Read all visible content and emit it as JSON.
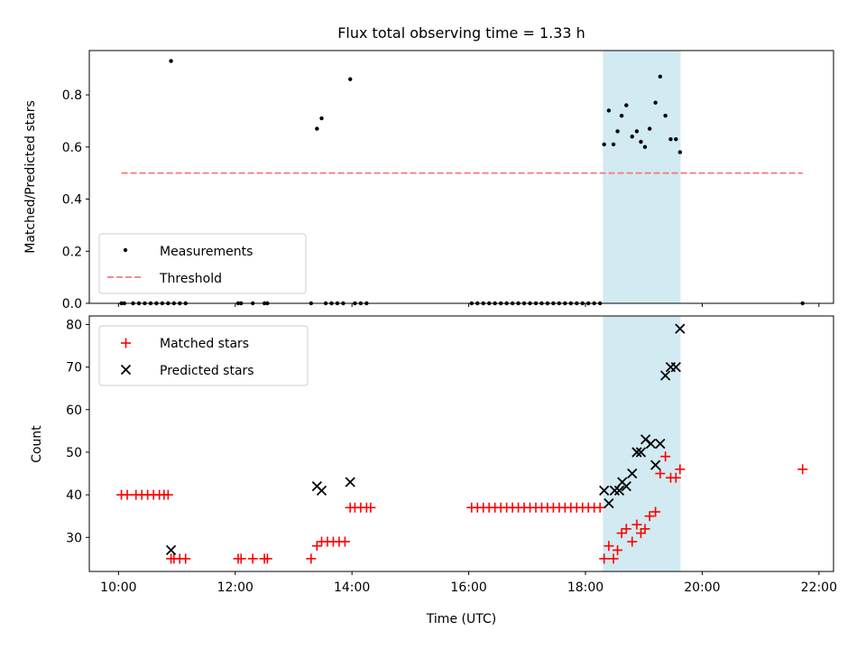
{
  "figure": {
    "title": "Flux total observing time = 1.33 h",
    "colors": {
      "highlight": "#add8e6",
      "measurement": "#000000",
      "threshold": "#f08080",
      "matched": "#ff0000",
      "predicted": "#000000"
    }
  },
  "chart_data": [
    {
      "type": "scatter",
      "title": "Flux total observing time = 1.33 h",
      "xlabel": "",
      "ylabel": "Matched/Predicted stars",
      "xlim": [
        9.5,
        22.25
      ],
      "ylim": [
        0,
        0.97
      ],
      "yticks": [
        0.0,
        0.2,
        0.4,
        0.6,
        0.8
      ],
      "ytick_labels": [
        "0.0",
        "0.2",
        "0.4",
        "0.6",
        "0.8"
      ],
      "grid": false,
      "legend": "lower-left",
      "highlight_span": [
        18.3,
        19.63
      ],
      "series": [
        {
          "name": "Measurements",
          "marker": "dot",
          "points": [
            [
              10.05,
              0
            ],
            [
              10.1,
              0
            ],
            [
              10.25,
              0
            ],
            [
              10.35,
              0
            ],
            [
              10.45,
              0
            ],
            [
              10.55,
              0
            ],
            [
              10.65,
              0
            ],
            [
              10.75,
              0
            ],
            [
              10.85,
              0
            ],
            [
              10.9,
              0.93
            ],
            [
              10.95,
              0
            ],
            [
              11.05,
              0
            ],
            [
              11.15,
              0
            ],
            [
              12.05,
              0
            ],
            [
              12.1,
              0
            ],
            [
              12.3,
              0
            ],
            [
              12.5,
              0
            ],
            [
              12.55,
              0
            ],
            [
              13.3,
              0
            ],
            [
              13.4,
              0.67
            ],
            [
              13.48,
              0.71
            ],
            [
              13.55,
              0
            ],
            [
              13.65,
              0
            ],
            [
              13.75,
              0
            ],
            [
              13.85,
              0
            ],
            [
              13.97,
              0.86
            ],
            [
              14.05,
              0
            ],
            [
              14.15,
              0
            ],
            [
              14.25,
              0
            ],
            [
              16.05,
              0
            ],
            [
              16.15,
              0
            ],
            [
              16.25,
              0
            ],
            [
              16.35,
              0
            ],
            [
              16.45,
              0
            ],
            [
              16.55,
              0
            ],
            [
              16.65,
              0
            ],
            [
              16.75,
              0
            ],
            [
              16.85,
              0
            ],
            [
              16.95,
              0
            ],
            [
              17.05,
              0
            ],
            [
              17.15,
              0
            ],
            [
              17.25,
              0
            ],
            [
              17.35,
              0
            ],
            [
              17.45,
              0
            ],
            [
              17.55,
              0
            ],
            [
              17.65,
              0
            ],
            [
              17.75,
              0
            ],
            [
              17.85,
              0
            ],
            [
              17.95,
              0
            ],
            [
              18.05,
              0
            ],
            [
              18.15,
              0
            ],
            [
              18.25,
              0
            ],
            [
              18.32,
              0.61
            ],
            [
              18.4,
              0.74
            ],
            [
              18.48,
              0.61
            ],
            [
              18.55,
              0.66
            ],
            [
              18.62,
              0.72
            ],
            [
              18.7,
              0.76
            ],
            [
              18.8,
              0.64
            ],
            [
              18.88,
              0.66
            ],
            [
              18.95,
              0.62
            ],
            [
              19.02,
              0.6
            ],
            [
              19.1,
              0.67
            ],
            [
              19.2,
              0.77
            ],
            [
              19.28,
              0.87
            ],
            [
              19.37,
              0.72
            ],
            [
              19.46,
              0.63
            ],
            [
              19.55,
              0.63
            ],
            [
              19.62,
              0.58
            ],
            [
              21.72,
              0
            ]
          ]
        },
        {
          "name": "Threshold",
          "marker": "dashed-line",
          "line": [
            [
              10.05,
              0.5
            ],
            [
              21.72,
              0.5
            ]
          ]
        }
      ]
    },
    {
      "type": "scatter",
      "title": "",
      "xlabel": "Time (UTC)",
      "ylabel": "Count",
      "xlim": [
        9.5,
        22.25
      ],
      "ylim": [
        22,
        82
      ],
      "xticks": [
        10,
        12,
        14,
        16,
        18,
        20,
        22
      ],
      "xtick_labels": [
        "10:00",
        "12:00",
        "14:00",
        "16:00",
        "18:00",
        "20:00",
        "22:00"
      ],
      "yticks": [
        30,
        40,
        50,
        60,
        70,
        80
      ],
      "ytick_labels": [
        "30",
        "40",
        "50",
        "60",
        "70",
        "80"
      ],
      "grid": false,
      "legend": "top-left",
      "highlight_span": [
        18.3,
        19.63
      ],
      "series": [
        {
          "name": "Matched stars",
          "marker": "plus",
          "points": [
            [
              10.05,
              40
            ],
            [
              10.15,
              40
            ],
            [
              10.3,
              40
            ],
            [
              10.4,
              40
            ],
            [
              10.5,
              40
            ],
            [
              10.6,
              40
            ],
            [
              10.7,
              40
            ],
            [
              10.78,
              40
            ],
            [
              10.85,
              40
            ],
            [
              10.9,
              25
            ],
            [
              10.95,
              25
            ],
            [
              11.05,
              25
            ],
            [
              11.15,
              25
            ],
            [
              12.05,
              25
            ],
            [
              12.1,
              25
            ],
            [
              12.3,
              25
            ],
            [
              12.5,
              25
            ],
            [
              12.55,
              25
            ],
            [
              13.3,
              25
            ],
            [
              13.4,
              28
            ],
            [
              13.48,
              29
            ],
            [
              13.58,
              29
            ],
            [
              13.68,
              29
            ],
            [
              13.78,
              29
            ],
            [
              13.88,
              29
            ],
            [
              13.97,
              37
            ],
            [
              14.05,
              37
            ],
            [
              14.15,
              37
            ],
            [
              14.25,
              37
            ],
            [
              14.32,
              37
            ],
            [
              16.05,
              37
            ],
            [
              16.15,
              37
            ],
            [
              16.25,
              37
            ],
            [
              16.35,
              37
            ],
            [
              16.45,
              37
            ],
            [
              16.55,
              37
            ],
            [
              16.65,
              37
            ],
            [
              16.75,
              37
            ],
            [
              16.85,
              37
            ],
            [
              16.95,
              37
            ],
            [
              17.05,
              37
            ],
            [
              17.15,
              37
            ],
            [
              17.25,
              37
            ],
            [
              17.35,
              37
            ],
            [
              17.45,
              37
            ],
            [
              17.55,
              37
            ],
            [
              17.65,
              37
            ],
            [
              17.75,
              37
            ],
            [
              17.85,
              37
            ],
            [
              17.95,
              37
            ],
            [
              18.05,
              37
            ],
            [
              18.15,
              37
            ],
            [
              18.25,
              37
            ],
            [
              18.32,
              25
            ],
            [
              18.4,
              28
            ],
            [
              18.48,
              25
            ],
            [
              18.55,
              27
            ],
            [
              18.62,
              31
            ],
            [
              18.7,
              32
            ],
            [
              18.8,
              29
            ],
            [
              18.88,
              33
            ],
            [
              18.95,
              31
            ],
            [
              19.02,
              32
            ],
            [
              19.1,
              35
            ],
            [
              19.2,
              36
            ],
            [
              19.28,
              45
            ],
            [
              19.37,
              49
            ],
            [
              19.46,
              44
            ],
            [
              19.55,
              44
            ],
            [
              19.62,
              46
            ],
            [
              21.72,
              46
            ]
          ]
        },
        {
          "name": "Predicted stars",
          "marker": "x",
          "points": [
            [
              10.9,
              27
            ],
            [
              13.4,
              42
            ],
            [
              13.48,
              41
            ],
            [
              13.97,
              43
            ],
            [
              18.32,
              41
            ],
            [
              18.4,
              38
            ],
            [
              18.5,
              41
            ],
            [
              18.58,
              41
            ],
            [
              18.63,
              43
            ],
            [
              18.7,
              42
            ],
            [
              18.8,
              45
            ],
            [
              18.88,
              50
            ],
            [
              18.95,
              50
            ],
            [
              19.03,
              53
            ],
            [
              19.12,
              52
            ],
            [
              19.2,
              47
            ],
            [
              19.28,
              52
            ],
            [
              19.37,
              68
            ],
            [
              19.46,
              70
            ],
            [
              19.55,
              70
            ],
            [
              19.62,
              79
            ]
          ]
        }
      ]
    }
  ]
}
